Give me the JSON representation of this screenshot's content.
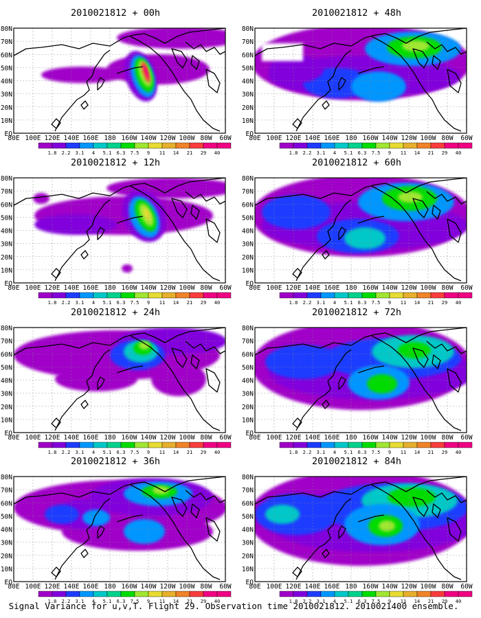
{
  "figure": {
    "caption": "Signal Variance for u,v,T. Flight 29. Observation time 2010021812. 2010021400 ensemble.",
    "lon_labels": [
      "80E",
      "100E",
      "120E",
      "140E",
      "160E",
      "180",
      "160W",
      "140W",
      "120W",
      "100W",
      "80W",
      "60W"
    ],
    "lat_labels": [
      "EQ",
      "10N",
      "20N",
      "30N",
      "40N",
      "50N",
      "60N",
      "70N",
      "80N"
    ],
    "colorbar": {
      "labels": [
        "1.8",
        "2.2",
        "3.1",
        "4",
        "5.1",
        "6.3",
        "7.5",
        "9",
        "11",
        "14",
        "21",
        "29",
        "40"
      ],
      "colors": [
        "#a000c8",
        "#8200dc",
        "#1e3cff",
        "#0096ff",
        "#00c8c8",
        "#00d28c",
        "#00dc00",
        "#a0e632",
        "#e6dc32",
        "#e6af2d",
        "#f08228",
        "#fa3c3c",
        "#f00082"
      ]
    },
    "background_color": "#ffffff",
    "panels": [
      {
        "title": "2010021812 + 00h",
        "lead_hours": 0
      },
      {
        "title": "2010021812 + 48h",
        "lead_hours": 48
      },
      {
        "title": "2010021812 + 12h",
        "lead_hours": 12
      },
      {
        "title": "2010021812 + 60h",
        "lead_hours": 60
      },
      {
        "title": "2010021812 + 24h",
        "lead_hours": 24
      },
      {
        "title": "2010021812 + 72h",
        "lead_hours": 72
      },
      {
        "title": "2010021812 + 36h",
        "lead_hours": 36
      },
      {
        "title": "2010021812 + 84h",
        "lead_hours": 84
      }
    ]
  }
}
